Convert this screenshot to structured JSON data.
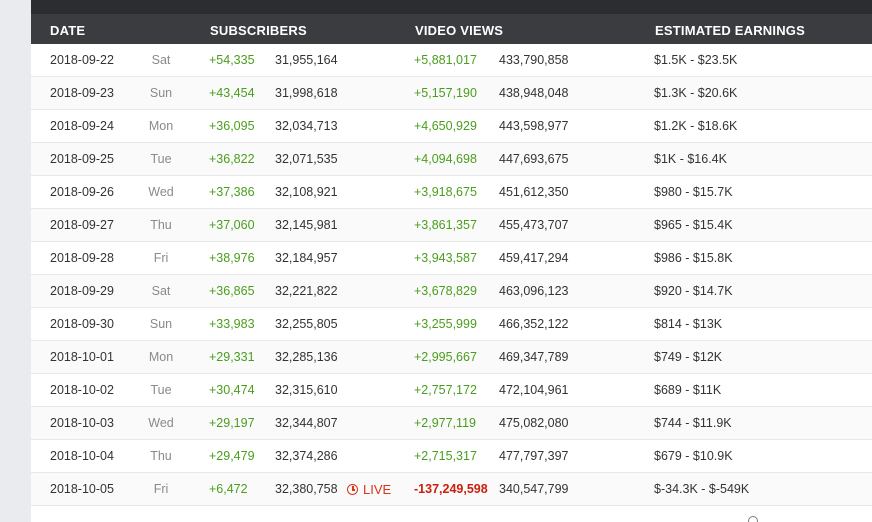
{
  "table": {
    "headers": {
      "date": "DATE",
      "subscribers": "SUBSCRIBERS",
      "video_views": "VIDEO VIEWS",
      "estimated_earnings": "ESTIMATED EARNINGS"
    },
    "rows": [
      {
        "date": "2018-09-22",
        "day": "Sat",
        "sub_gain": "+54,335",
        "sub_total": "31,955,164",
        "live": "",
        "view_gain": "+5,881,017",
        "view_total": "433,790,858",
        "earnings": "$1.5K  -  $23.5K"
      },
      {
        "date": "2018-09-23",
        "day": "Sun",
        "sub_gain": "+43,454",
        "sub_total": "31,998,618",
        "live": "",
        "view_gain": "+5,157,190",
        "view_total": "438,948,048",
        "earnings": "$1.3K  -  $20.6K"
      },
      {
        "date": "2018-09-24",
        "day": "Mon",
        "sub_gain": "+36,095",
        "sub_total": "32,034,713",
        "live": "",
        "view_gain": "+4,650,929",
        "view_total": "443,598,977",
        "earnings": "$1.2K  -  $18.6K"
      },
      {
        "date": "2018-09-25",
        "day": "Tue",
        "sub_gain": "+36,822",
        "sub_total": "32,071,535",
        "live": "",
        "view_gain": "+4,094,698",
        "view_total": "447,693,675",
        "earnings": "$1K  -  $16.4K"
      },
      {
        "date": "2018-09-26",
        "day": "Wed",
        "sub_gain": "+37,386",
        "sub_total": "32,108,921",
        "live": "",
        "view_gain": "+3,918,675",
        "view_total": "451,612,350",
        "earnings": "$980  -  $15.7K"
      },
      {
        "date": "2018-09-27",
        "day": "Thu",
        "sub_gain": "+37,060",
        "sub_total": "32,145,981",
        "live": "",
        "view_gain": "+3,861,357",
        "view_total": "455,473,707",
        "earnings": "$965  -  $15.4K"
      },
      {
        "date": "2018-09-28",
        "day": "Fri",
        "sub_gain": "+38,976",
        "sub_total": "32,184,957",
        "live": "",
        "view_gain": "+3,943,587",
        "view_total": "459,417,294",
        "earnings": "$986  -  $15.8K"
      },
      {
        "date": "2018-09-29",
        "day": "Sat",
        "sub_gain": "+36,865",
        "sub_total": "32,221,822",
        "live": "",
        "view_gain": "+3,678,829",
        "view_total": "463,096,123",
        "earnings": "$920  -  $14.7K"
      },
      {
        "date": "2018-09-30",
        "day": "Sun",
        "sub_gain": "+33,983",
        "sub_total": "32,255,805",
        "live": "",
        "view_gain": "+3,255,999",
        "view_total": "466,352,122",
        "earnings": "$814  -  $13K"
      },
      {
        "date": "2018-10-01",
        "day": "Mon",
        "sub_gain": "+29,331",
        "sub_total": "32,285,136",
        "live": "",
        "view_gain": "+2,995,667",
        "view_total": "469,347,789",
        "earnings": "$749  -  $12K"
      },
      {
        "date": "2018-10-02",
        "day": "Tue",
        "sub_gain": "+30,474",
        "sub_total": "32,315,610",
        "live": "",
        "view_gain": "+2,757,172",
        "view_total": "472,104,961",
        "earnings": "$689  -  $11K"
      },
      {
        "date": "2018-10-03",
        "day": "Wed",
        "sub_gain": "+29,197",
        "sub_total": "32,344,807",
        "live": "",
        "view_gain": "+2,977,119",
        "view_total": "475,082,080",
        "earnings": "$744  -  $11.9K"
      },
      {
        "date": "2018-10-04",
        "day": "Thu",
        "sub_gain": "+29,479",
        "sub_total": "32,374,286",
        "live": "",
        "view_gain": "+2,715,317",
        "view_total": "477,797,397",
        "earnings": "$679  -  $10.9K"
      },
      {
        "date": "2018-10-05",
        "day": "Fri",
        "sub_gain": "+6,472",
        "sub_total": "32,380,758",
        "live": "LIVE",
        "view_gain": "-137,249,598",
        "view_total": "340,547,799",
        "earnings": "$-34.3K  -  $-549K"
      }
    ]
  },
  "colors": {
    "header_bg": "#3b3c40",
    "gain_green": "#4a9e1c",
    "loss_red": "#c9200e",
    "live_red": "#d9351a"
  },
  "icons": {
    "live": "clock-icon",
    "footer": "search-icon"
  }
}
